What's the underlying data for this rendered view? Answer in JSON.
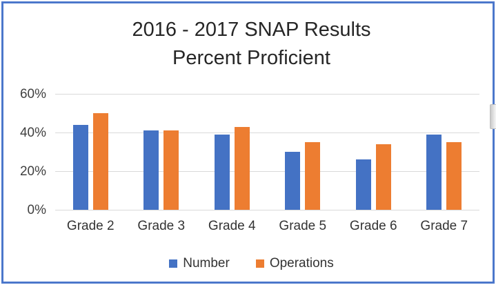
{
  "window": {
    "frame_color": "#4B77CB",
    "background": "#FFFFFF"
  },
  "scrollbar": {
    "thumb_visible": true
  },
  "chart_data": {
    "type": "bar",
    "title": "2016 - 2017 SNAP Results Percent Proficient",
    "title_lines": [
      "2016 - 2017 SNAP Results",
      "Percent Proficient"
    ],
    "categories": [
      "Grade 2",
      "Grade 3",
      "Grade 4",
      "Grade 5",
      "Grade 6",
      "Grade 7"
    ],
    "series": [
      {
        "name": "Number",
        "color": "#4472C4",
        "values": [
          44,
          41,
          39,
          30,
          26,
          39
        ]
      },
      {
        "name": "Operations",
        "color": "#ED7D31",
        "values": [
          50,
          41,
          43,
          35,
          34,
          35
        ]
      }
    ],
    "xlabel": "",
    "ylabel": "",
    "ylim": [
      0,
      60
    ],
    "y_ticks": [
      {
        "label": "60%",
        "value": 60
      },
      {
        "label": "40%",
        "value": 40
      },
      {
        "label": "20%",
        "value": 20
      },
      {
        "label": "0%",
        "value": 0
      }
    ],
    "grid": true,
    "gridline_color": "#D9D9D9",
    "legend_position": "bottom",
    "title_color": "#262626",
    "axis_text_color": "#404040"
  }
}
